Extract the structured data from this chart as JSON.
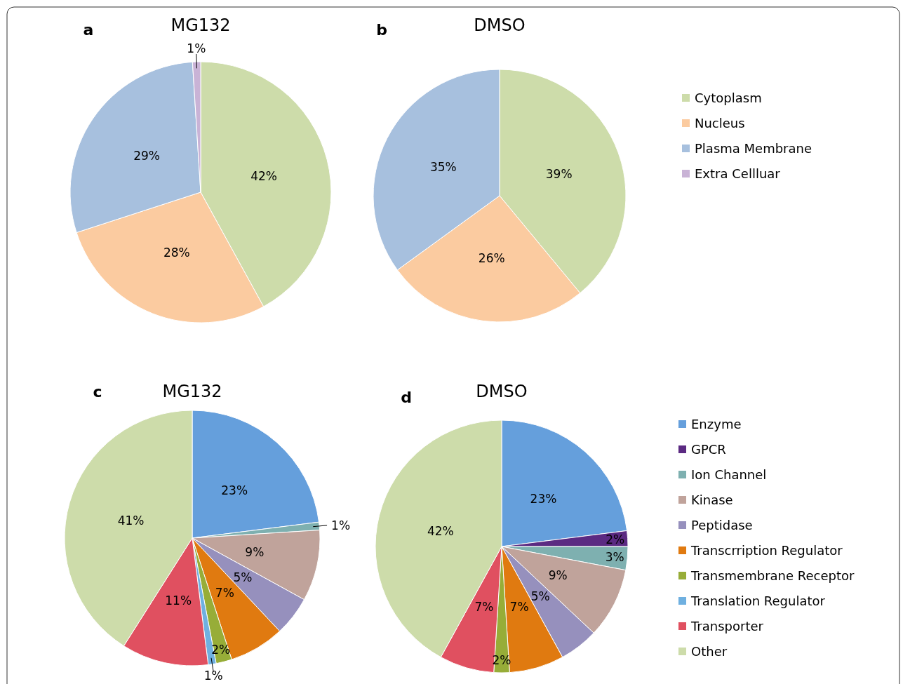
{
  "chart_data": [
    {
      "type": "pie",
      "title": "MG132",
      "annotations": [
        "a"
      ],
      "categories": [
        "Cytoplasm",
        "Nucleus",
        "Plasma Membrane",
        "Extra Cellluar"
      ],
      "values": [
        42,
        28,
        29,
        1
      ],
      "value_labels": [
        "42%",
        "28%",
        "29%",
        "1%"
      ],
      "colors": [
        "#cddcaa",
        "#fbcba0",
        "#a7c0de",
        "#c9b3d6"
      ],
      "legend": "right"
    },
    {
      "type": "pie",
      "title": "DMSO",
      "annotations": [
        "b"
      ],
      "categories": [
        null,
        null,
        null
      ],
      "values": [
        39,
        26,
        35
      ],
      "value_labels": [
        "39%",
        "26%",
        "35%"
      ],
      "colors": [
        "#cddcaa",
        "#fbcba0",
        "#a7c0de"
      ],
      "legend": false
    },
    {
      "type": "pie",
      "title": "MG132",
      "annotations": [
        "c"
      ],
      "categories": [
        null,
        null,
        null,
        null,
        null,
        null,
        null,
        null,
        null
      ],
      "values": [
        23,
        1,
        9,
        5,
        7,
        2,
        1,
        11,
        41
      ],
      "value_labels": [
        "23%",
        "1%",
        "9%",
        "5%",
        "7%",
        "2%",
        "1%",
        "11%",
        "41%"
      ],
      "colors": [
        "#659fdc",
        "#7eb0b0",
        "#c0a39b",
        "#9690bd",
        "#e07a10",
        "#97ad38",
        "#6fb0e0",
        "#e05060",
        "#cddcaa"
      ],
      "legend": false
    },
    {
      "type": "pie",
      "title": "DMSO",
      "annotations": [
        "d"
      ],
      "categories": [
        "Enzyme",
        "GPCR",
        "Ion Channel",
        "Kinase",
        "Peptidase",
        "Transcrription Regulator",
        "Transmembrane Receptor",
        "Translation Regulator",
        "Transporter",
        "Other"
      ],
      "values": [
        23,
        2,
        3,
        9,
        5,
        7,
        2,
        0,
        7,
        42
      ],
      "value_labels": [
        "23%",
        "2%",
        "3%",
        "9%",
        "5%",
        "7%",
        "2%",
        null,
        "7%",
        "42%"
      ],
      "colors": [
        "#659fdc",
        "#5b2a82",
        "#7eb0b0",
        "#c0a39b",
        "#9690bd",
        "#e07a10",
        "#97ad38",
        "#6fb0e0",
        "#e05060",
        "#cddcaa"
      ],
      "legend": "right"
    }
  ]
}
